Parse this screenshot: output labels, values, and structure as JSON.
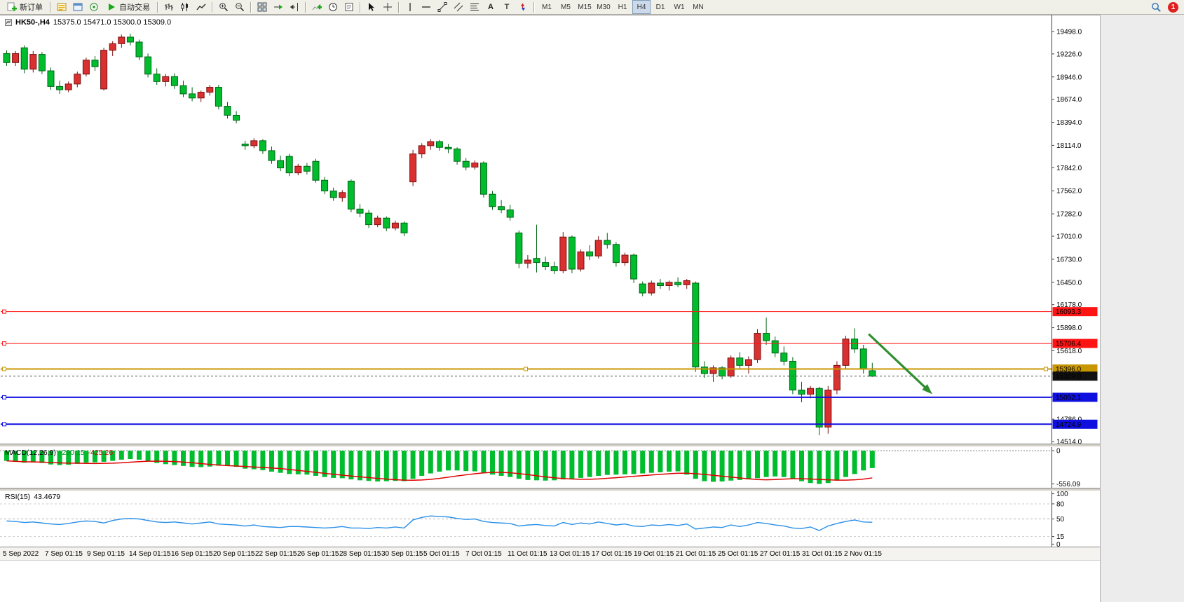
{
  "toolbar": {
    "new_order": "新订单",
    "autotrading": "自动交易",
    "text_tool": "A",
    "text_label_tool": "T",
    "timeframes": [
      "M1",
      "M5",
      "M15",
      "M30",
      "H1",
      "H4",
      "D1",
      "W1",
      "MN"
    ],
    "active_timeframe": "H4",
    "notification_count": "1"
  },
  "chart_data": {
    "type": "candlestick",
    "symbol_tf": "HK50-,H4",
    "ohlc_display": "15375.0 15471.0 15300.0 15309.0",
    "last_candle": {
      "open": 15375.0,
      "high": 15471.0,
      "low": 15300.0,
      "close": 15309.0
    },
    "price_axis_labels": [
      "19498.0",
      "19226.0",
      "18946.0",
      "18674.0",
      "18394.0",
      "18114.0",
      "17842.0",
      "17562.0",
      "17282.0",
      "17010.0",
      "16730.0",
      "16450.0",
      "16178.0",
      "15898.0",
      "15618.0",
      "15338.0",
      "15066.0",
      "14786.0",
      "14514.0"
    ],
    "colors": {
      "up": "#d93030",
      "up_border": "#7a1010",
      "down": "#00bd2e",
      "down_border": "#006414",
      "macd_histogram": "#00bd2e",
      "macd_signal": "#e00000",
      "rsi": "#2a8fe8"
    },
    "candles": [
      [
        19230,
        19270,
        19080,
        19120
      ],
      [
        19120,
        19260,
        19080,
        19230
      ],
      [
        19300,
        19330,
        18990,
        19040
      ],
      [
        19040,
        19260,
        19000,
        19220
      ],
      [
        19220,
        19250,
        18980,
        19020
      ],
      [
        19020,
        19060,
        18790,
        18830
      ],
      [
        18830,
        18900,
        18740,
        18790
      ],
      [
        18790,
        18890,
        18760,
        18860
      ],
      [
        18860,
        19010,
        18820,
        18980
      ],
      [
        18980,
        19180,
        18950,
        19150
      ],
      [
        19150,
        19200,
        19020,
        19070
      ],
      [
        18800,
        19300,
        18780,
        19270
      ],
      [
        19270,
        19380,
        19200,
        19350
      ],
      [
        19350,
        19460,
        19300,
        19430
      ],
      [
        19430,
        19470,
        19330,
        19370
      ],
      [
        19370,
        19400,
        19150,
        19190
      ],
      [
        19190,
        19230,
        18940,
        18980
      ],
      [
        18980,
        19050,
        18850,
        18890
      ],
      [
        18890,
        18980,
        18830,
        18950
      ],
      [
        18950,
        18990,
        18800,
        18840
      ],
      [
        18840,
        18900,
        18700,
        18740
      ],
      [
        18740,
        18820,
        18650,
        18690
      ],
      [
        18690,
        18780,
        18640,
        18760
      ],
      [
        18760,
        18850,
        18720,
        18820
      ],
      [
        18820,
        18850,
        18550,
        18590
      ],
      [
        18590,
        18640,
        18440,
        18480
      ],
      [
        18480,
        18530,
        18380,
        18420
      ],
      [
        18130,
        18170,
        18060,
        18110
      ],
      [
        18110,
        18200,
        18080,
        18170
      ],
      [
        18170,
        18190,
        18010,
        18050
      ],
      [
        18050,
        18100,
        17890,
        17930
      ],
      [
        17930,
        17990,
        17800,
        17840
      ],
      [
        17980,
        18010,
        17740,
        17780
      ],
      [
        17780,
        17890,
        17750,
        17860
      ],
      [
        17860,
        17900,
        17760,
        17800
      ],
      [
        17920,
        17950,
        17660,
        17690
      ],
      [
        17690,
        17730,
        17520,
        17560
      ],
      [
        17560,
        17600,
        17440,
        17480
      ],
      [
        17480,
        17570,
        17430,
        17540
      ],
      [
        17680,
        17700,
        17300,
        17340
      ],
      [
        17340,
        17400,
        17240,
        17290
      ],
      [
        17290,
        17330,
        17110,
        17150
      ],
      [
        17150,
        17260,
        17120,
        17230
      ],
      [
        17230,
        17250,
        17070,
        17110
      ],
      [
        17110,
        17200,
        17080,
        17170
      ],
      [
        17170,
        17190,
        17010,
        17050
      ],
      [
        17670,
        18060,
        17620,
        18010
      ],
      [
        18010,
        18140,
        17960,
        18110
      ],
      [
        18110,
        18190,
        18060,
        18160
      ],
      [
        18160,
        18180,
        18050,
        18090
      ],
      [
        18090,
        18130,
        18020,
        18070
      ],
      [
        18070,
        18090,
        17880,
        17920
      ],
      [
        17920,
        17960,
        17810,
        17850
      ],
      [
        17850,
        17930,
        17820,
        17900
      ],
      [
        17900,
        17920,
        17480,
        17520
      ],
      [
        17520,
        17560,
        17330,
        17370
      ],
      [
        17370,
        17450,
        17290,
        17330
      ],
      [
        17330,
        17390,
        17200,
        17240
      ],
      [
        17050,
        17080,
        16620,
        16680
      ],
      [
        16680,
        16780,
        16620,
        16720
      ],
      [
        16740,
        17150,
        16570,
        16690
      ],
      [
        16690,
        16760,
        16600,
        16640
      ],
      [
        16640,
        16700,
        16550,
        16590
      ],
      [
        16590,
        17060,
        16560,
        17000
      ],
      [
        17000,
        17020,
        16560,
        16610
      ],
      [
        16610,
        16850,
        16580,
        16820
      ],
      [
        16820,
        16900,
        16720,
        16770
      ],
      [
        16770,
        17010,
        16740,
        16960
      ],
      [
        16960,
        17050,
        16860,
        16910
      ],
      [
        16910,
        16940,
        16640,
        16690
      ],
      [
        16690,
        16810,
        16650,
        16780
      ],
      [
        16780,
        16800,
        16440,
        16490
      ],
      [
        16430,
        16460,
        16280,
        16320
      ],
      [
        16320,
        16470,
        16290,
        16440
      ],
      [
        16440,
        16490,
        16370,
        16410
      ],
      [
        16410,
        16470,
        16350,
        16450
      ],
      [
        16450,
        16510,
        16390,
        16420
      ],
      [
        16420,
        16490,
        16370,
        16470
      ],
      [
        16440,
        16460,
        15360,
        15420
      ],
      [
        15420,
        15490,
        15290,
        15340
      ],
      [
        15340,
        15440,
        15240,
        15410
      ],
      [
        15410,
        15430,
        15270,
        15310
      ],
      [
        15310,
        15560,
        15290,
        15530
      ],
      [
        15530,
        15600,
        15390,
        15440
      ],
      [
        15440,
        15550,
        15340,
        15510
      ],
      [
        15510,
        15880,
        15470,
        15830
      ],
      [
        15830,
        16020,
        15690,
        15740
      ],
      [
        15740,
        15790,
        15540,
        15590
      ],
      [
        15590,
        15670,
        15440,
        15490
      ],
      [
        15490,
        15540,
        15090,
        15140
      ],
      [
        15140,
        15240,
        14990,
        15090
      ],
      [
        15090,
        15190,
        15040,
        15160
      ],
      [
        15160,
        15180,
        14590,
        14690
      ],
      [
        14690,
        15190,
        14610,
        15140
      ],
      [
        15140,
        15490,
        15090,
        15440
      ],
      [
        15440,
        15800,
        15390,
        15760
      ],
      [
        15760,
        15890,
        15590,
        15640
      ],
      [
        15640,
        15690,
        15340,
        15400
      ],
      [
        15375,
        15471,
        15300,
        15309
      ]
    ],
    "hlines": [
      {
        "price": 16093.3,
        "label": "16093.3",
        "color": "#ff1414",
        "width": 1,
        "handles": "left"
      },
      {
        "price": 15706.4,
        "label": "15706.4",
        "color": "#ff1414",
        "width": 1,
        "handles": "left"
      },
      {
        "price": 15396.0,
        "label": "15396.0",
        "color": "#c89600",
        "width": 2,
        "handles": "left-center-right"
      },
      {
        "price": 15052.1,
        "label": "15052.1",
        "color": "#0f0fe0",
        "width": 2,
        "handles": "left"
      },
      {
        "price": 14724.9,
        "label": "14724.9",
        "color": "#0f0fe0",
        "width": 2,
        "handles": "left"
      }
    ],
    "current_price": {
      "price": 15309.0,
      "label": "15309.0",
      "badge_color": "#111111"
    },
    "arrow": {
      "from_index": 97.6,
      "from_price": 15820,
      "to_index": 104.8,
      "to_price": 15090,
      "color": "#2f8f2f"
    },
    "macd": {
      "name": "MACD(12,26,9)",
      "value_main": "-290.15",
      "value_signal": "-425.26",
      "signal_period": 9,
      "axis": [
        {
          "value": 0,
          "label": "0"
        },
        {
          "value": -556.09,
          "label": "-556.09"
        }
      ],
      "histogram": [
        -170,
        -185,
        -200,
        -195,
        -205,
        -230,
        -240,
        -235,
        -220,
        -200,
        -195,
        -185,
        -170,
        -150,
        -140,
        -150,
        -175,
        -205,
        -225,
        -240,
        -255,
        -270,
        -275,
        -265,
        -250,
        -255,
        -270,
        -300,
        -310,
        -325,
        -350,
        -370,
        -390,
        -395,
        -400,
        -420,
        -440,
        -455,
        -460,
        -480,
        -495,
        -505,
        -515,
        -510,
        -505,
        -510,
        -470,
        -420,
        -380,
        -350,
        -330,
        -330,
        -340,
        -345,
        -370,
        -400,
        -420,
        -440,
        -470,
        -490,
        -495,
        -500,
        -495,
        -480,
        -470,
        -455,
        -440,
        -420,
        -405,
        -400,
        -395,
        -390,
        -380,
        -370,
        -360,
        -350,
        -345,
        -400,
        -470,
        -510,
        -520,
        -515,
        -500,
        -490,
        -480,
        -460,
        -440,
        -430,
        -440,
        -470,
        -510,
        -540,
        -556.09,
        -540,
        -500,
        -440,
        -390,
        -330,
        -290.15
      ]
    },
    "rsi": {
      "name": "RSI(15)",
      "value": "43.4679",
      "levels": [
        100,
        80,
        50,
        15,
        0
      ],
      "values": [
        46,
        45,
        43,
        44,
        42,
        40,
        39,
        41,
        44,
        46,
        45,
        42,
        47,
        50,
        51,
        50,
        47,
        44,
        43,
        44,
        42,
        40,
        42,
        44,
        40,
        39,
        38,
        36,
        38,
        35,
        34,
        33,
        35,
        35,
        34,
        33,
        32,
        33,
        35,
        32,
        32,
        31,
        33,
        32,
        34,
        32,
        48,
        53,
        56,
        55,
        54,
        51,
        49,
        50,
        45,
        43,
        42,
        41,
        36,
        38,
        39,
        37,
        36,
        43,
        39,
        42,
        40,
        44,
        41,
        38,
        40,
        36,
        35,
        38,
        37,
        39,
        37,
        40,
        30,
        32,
        34,
        33,
        38,
        35,
        38,
        43,
        41,
        38,
        36,
        32,
        31,
        34,
        27,
        36,
        41,
        45,
        48,
        44,
        43.4679
      ]
    },
    "dates": [
      "5 Sep 2022",
      "7 Sep 01:15",
      "9 Sep 01:15",
      "14 Sep 01:15",
      "16 Sep 01:15",
      "20 Sep 01:15",
      "22 Sep 01:15",
      "26 Sep 01:15",
      "28 Sep 01:15",
      "30 Sep 01:15",
      "5 Oct 01:15",
      "7 Oct 01:15",
      "11 Oct 01:15",
      "13 Oct 01:15",
      "17 Oct 01:15",
      "19 Oct 01:15",
      "21 Oct 01:15",
      "25 Oct 01:15",
      "27 Oct 01:15",
      "31 Oct 01:15",
      "2 Nov 01:15"
    ]
  }
}
